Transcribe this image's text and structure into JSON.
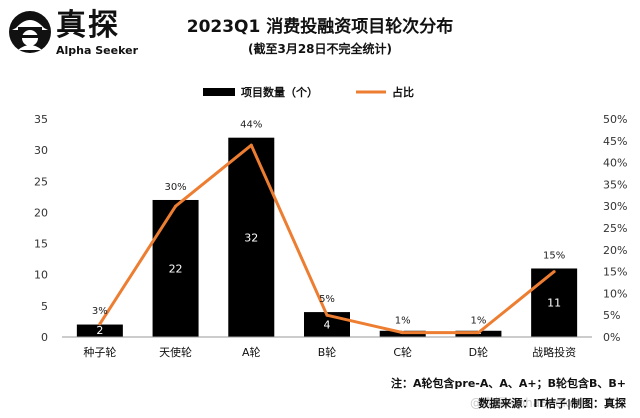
{
  "brand": {
    "name_cn": "真探",
    "name_en": "Alpha Seeker"
  },
  "header": {
    "title": "2023Q1  消费投融资项目轮次分布",
    "subtitle": "(截至3月28日不完全统计)"
  },
  "footer": {
    "note": "注：A轮包含pre-A、A、A+；B轮包含B、B+",
    "source": "数据来源：IT桔子|制图：真探",
    "watermark": "@真探AlphaSeeker"
  },
  "colors": {
    "bar": "#000000",
    "line": "#ed7d31",
    "bar_label": "#ffffff"
  },
  "chart_data": {
    "type": "bar",
    "categories": [
      "种子轮",
      "天使轮",
      "A轮",
      "B轮",
      "C轮",
      "D轮",
      "战略投资"
    ],
    "series": [
      {
        "name": "项目数量（个）",
        "type": "bar",
        "axis": "left",
        "values": [
          2,
          22,
          32,
          4,
          1,
          1,
          11
        ]
      },
      {
        "name": "占比",
        "type": "line",
        "axis": "right",
        "values": [
          3,
          30,
          44,
          5,
          1,
          1,
          15
        ],
        "labels": [
          "3%",
          "30%",
          "44%",
          "5%",
          "1%",
          "1%",
          "15%"
        ]
      }
    ],
    "y_left": {
      "ticks": [
        "0",
        "5",
        "10",
        "15",
        "20",
        "25",
        "30",
        "35"
      ],
      "range": [
        0,
        35
      ]
    },
    "y_right": {
      "ticks": [
        "0%",
        "5%",
        "10%",
        "15%",
        "20%",
        "25%",
        "30%",
        "35%",
        "40%",
        "45%",
        "50%"
      ],
      "range": [
        0,
        50
      ]
    },
    "legend_position": "top-center",
    "grid": false
  }
}
